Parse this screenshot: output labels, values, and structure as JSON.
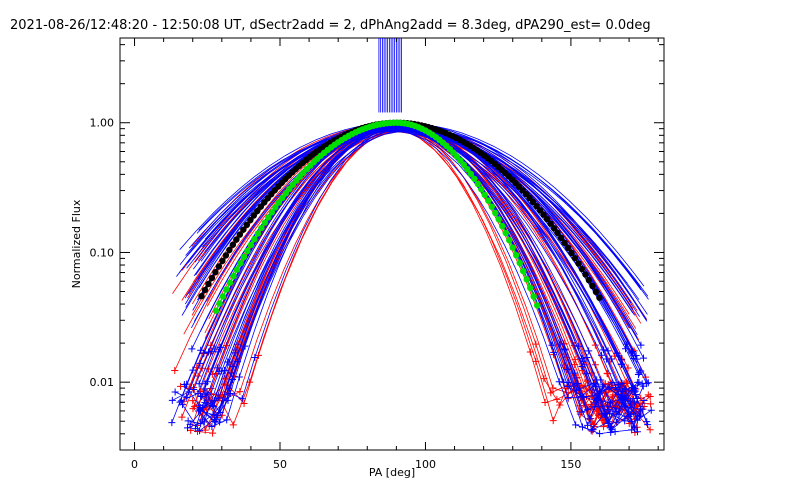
{
  "chart_data": {
    "type": "line",
    "title": "2021-08-26/12:48:20 - 12:50:08 UT, dSectr2add = 2, dPhAng2add = 8.3deg, dPA290_est=  0.0deg",
    "xlabel": "PA [deg]",
    "ylabel": "Normalized Flux",
    "xlim": [
      -5,
      182
    ],
    "ylim": [
      0.003,
      4.5
    ],
    "yscale": "log",
    "xticks": [
      0,
      50,
      100,
      150
    ],
    "xtick_labels": [
      "0",
      "50",
      "100",
      "150"
    ],
    "yticks": [
      0.01,
      0.1,
      1.0
    ],
    "ytick_labels": [
      "0.01",
      "0.10",
      "1.00"
    ],
    "grid": false,
    "colors": {
      "red_series": "#ff0000",
      "blue_series": "#0000ff",
      "green_fit": "#00e000",
      "black_fit": "#000000"
    },
    "series": [
      {
        "color": "red",
        "marker": "plus",
        "peak_x": 90,
        "width_deg": 30,
        "count": 40
      },
      {
        "color": "blue",
        "marker": "plus",
        "peak_x": 90,
        "width_deg": 32,
        "count": 60
      },
      {
        "color": "green",
        "marker": "circle",
        "x_range": [
          28,
          139
        ],
        "peak_x": 90,
        "peak_y": 1.0
      },
      {
        "color": "black",
        "marker": "circle",
        "x_range": [
          23,
          160
        ],
        "peak_x": 90,
        "peak_y": 1.0
      }
    ],
    "vertical_band": {
      "x_range": [
        84,
        92
      ],
      "y_from": 1.2,
      "color": "blue"
    }
  }
}
